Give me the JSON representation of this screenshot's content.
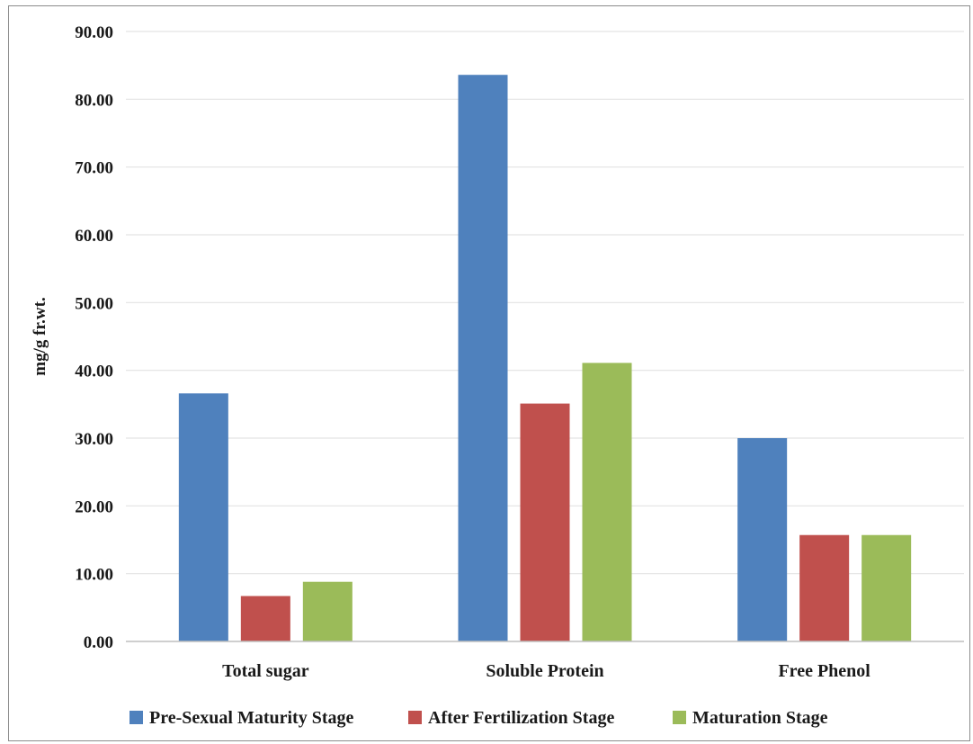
{
  "chart_data": {
    "type": "bar",
    "title": "",
    "xlabel": "",
    "ylabel": "mg/g fr.wt.",
    "ylim": [
      0,
      90
    ],
    "yticks": [
      "0.00",
      "10.00",
      "20.00",
      "30.00",
      "40.00",
      "50.00",
      "60.00",
      "70.00",
      "80.00",
      "90.00"
    ],
    "grid": true,
    "legend_position": "bottom",
    "categories": [
      "Total sugar",
      "Soluble Protein",
      "Free Phenol"
    ],
    "series": [
      {
        "name": "Pre-Sexual Maturity Stage",
        "color": "#4f81bd",
        "values": [
          36.6,
          83.6,
          30.0
        ]
      },
      {
        "name": "After Fertilization Stage",
        "color": "#c0504d",
        "values": [
          6.7,
          35.1,
          15.7
        ]
      },
      {
        "name": "Maturation Stage",
        "color": "#9bbb59",
        "values": [
          8.8,
          41.1,
          15.7
        ]
      }
    ]
  }
}
